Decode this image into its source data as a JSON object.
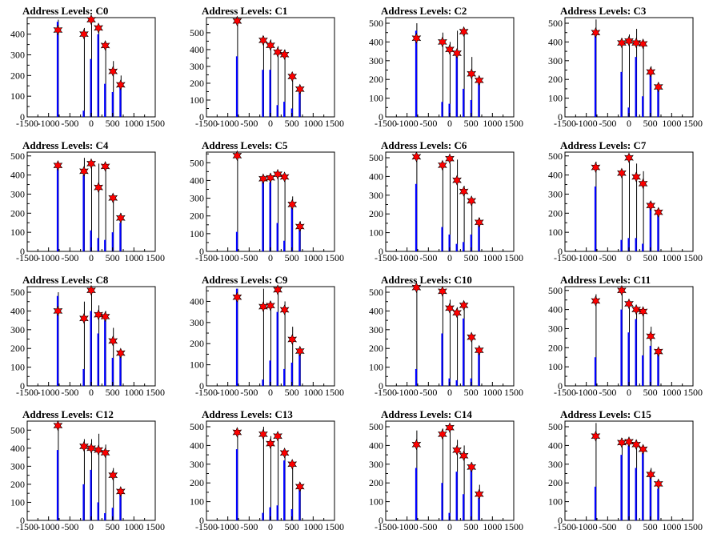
{
  "layout_note": "",
  "x_axis": {
    "xlim": [
      -1500,
      1500
    ],
    "ticks": [
      -1500,
      -1000,
      -500,
      0,
      500,
      1000,
      1500
    ]
  },
  "colors": {
    "histogram_black": "#000000",
    "histogram_blue": "#0000ff",
    "marker": "#ff0000"
  },
  "chart_data": [
    {
      "type": "bar",
      "title": "Address Levels: C0",
      "xlabel": "",
      "ylabel": "",
      "ylim": [
        0,
        480
      ],
      "yticks": [
        0,
        100,
        200,
        300,
        400
      ],
      "black": {
        "x": [
          -780,
          -170,
          0,
          170,
          330,
          510,
          690
        ],
        "values": [
          470,
          430,
          475,
          415,
          360,
          270,
          200
        ]
      },
      "blue": {
        "x": [
          -780,
          -170,
          0,
          170,
          330,
          510,
          690
        ],
        "values": [
          460,
          30,
          280,
          400,
          160,
          120,
          150
        ]
      },
      "markers": {
        "x": [
          -780,
          -170,
          0,
          170,
          330,
          510,
          690
        ],
        "values": [
          420,
          400,
          470,
          430,
          345,
          220,
          155
        ]
      }
    },
    {
      "type": "bar",
      "title": "Address Levels: C1",
      "xlabel": "",
      "ylabel": "",
      "ylim": [
        0,
        590
      ],
      "yticks": [
        0,
        100,
        200,
        300,
        400,
        500
      ],
      "black": {
        "x": [
          -780,
          -170,
          0,
          170,
          330,
          510,
          690
        ],
        "values": [
          590,
          480,
          460,
          420,
          400,
          260,
          180
        ]
      },
      "blue": {
        "x": [
          -780,
          -170,
          0,
          170,
          330,
          510,
          690
        ],
        "values": [
          360,
          280,
          280,
          70,
          90,
          50,
          150
        ]
      },
      "markers": {
        "x": [
          -780,
          -170,
          0,
          170,
          330,
          510,
          690
        ],
        "values": [
          570,
          455,
          425,
          385,
          370,
          240,
          165
        ]
      }
    },
    {
      "type": "bar",
      "title": "Address Levels: C2",
      "xlabel": "",
      "ylabel": "",
      "ylim": [
        0,
        530
      ],
      "yticks": [
        0,
        100,
        200,
        300,
        400,
        500
      ],
      "black": {
        "x": [
          -780,
          -170,
          0,
          170,
          330,
          510,
          690
        ],
        "values": [
          500,
          450,
          400,
          460,
          470,
          320,
          210
        ]
      },
      "blue": {
        "x": [
          -780,
          -170,
          0,
          170,
          330,
          510,
          690
        ],
        "values": [
          460,
          80,
          70,
          330,
          150,
          90,
          200
        ]
      },
      "markers": {
        "x": [
          -780,
          -170,
          0,
          170,
          330,
          510,
          690
        ],
        "values": [
          420,
          400,
          360,
          340,
          455,
          230,
          195
        ]
      }
    },
    {
      "type": "bar",
      "title": "Address Levels: C3",
      "xlabel": "",
      "ylabel": "",
      "ylim": [
        0,
        530
      ],
      "yticks": [
        0,
        100,
        200,
        300,
        400,
        500
      ],
      "black": {
        "x": [
          -780,
          -170,
          0,
          170,
          330,
          510,
          690
        ],
        "values": [
          520,
          420,
          440,
          470,
          380,
          270,
          180
        ]
      },
      "blue": {
        "x": [
          -780,
          -170,
          0,
          170,
          330,
          510,
          690
        ],
        "values": [
          460,
          240,
          50,
          320,
          110,
          230,
          170
        ]
      },
      "markers": {
        "x": [
          -780,
          -170,
          0,
          170,
          330,
          510,
          690
        ],
        "values": [
          450,
          395,
          405,
          395,
          390,
          240,
          160
        ]
      }
    },
    {
      "type": "bar",
      "title": "Address Levels: C4",
      "xlabel": "",
      "ylabel": "",
      "ylim": [
        0,
        520
      ],
      "yticks": [
        0,
        100,
        200,
        300,
        400,
        500
      ],
      "black": {
        "x": [
          -780,
          -170,
          0,
          170,
          330,
          510,
          690
        ],
        "values": [
          470,
          490,
          470,
          460,
          430,
          300,
          200
        ]
      },
      "blue": {
        "x": [
          -780,
          -170,
          0,
          170,
          330,
          510,
          690
        ],
        "values": [
          460,
          400,
          110,
          70,
          60,
          100,
          150
        ]
      },
      "markers": {
        "x": [
          -780,
          -170,
          0,
          170,
          330,
          510,
          690
        ],
        "values": [
          450,
          420,
          460,
          335,
          445,
          280,
          175
        ]
      }
    },
    {
      "type": "bar",
      "title": "Address Levels: C5",
      "xlabel": "",
      "ylabel": "",
      "ylim": [
        0,
        560
      ],
      "yticks": [
        0,
        100,
        200,
        300,
        400,
        500
      ],
      "black": {
        "x": [
          -780,
          -170,
          0,
          170,
          330,
          510,
          690
        ],
        "values": [
          550,
          420,
          440,
          450,
          430,
          310,
          170
        ]
      },
      "blue": {
        "x": [
          -780,
          -170,
          0,
          170,
          330,
          510,
          690
        ],
        "values": [
          110,
          410,
          390,
          160,
          60,
          280,
          150
        ]
      },
      "markers": {
        "x": [
          -780,
          -170,
          0,
          170,
          330,
          510,
          690
        ],
        "values": [
          540,
          410,
          415,
          435,
          420,
          265,
          140
        ]
      }
    },
    {
      "type": "bar",
      "title": "Address Levels: C6",
      "xlabel": "",
      "ylabel": "",
      "ylim": [
        0,
        530
      ],
      "yticks": [
        0,
        100,
        200,
        300,
        400,
        500
      ],
      "black": {
        "x": [
          -780,
          -170,
          0,
          170,
          330,
          510,
          690
        ],
        "values": [
          520,
          470,
          470,
          490,
          350,
          280,
          180
        ]
      },
      "blue": {
        "x": [
          -780,
          -170,
          0,
          170,
          330,
          510,
          690
        ],
        "values": [
          360,
          130,
          90,
          40,
          50,
          90,
          140
        ]
      },
      "markers": {
        "x": [
          -780,
          -170,
          0,
          170,
          330,
          510,
          690
        ],
        "values": [
          505,
          460,
          495,
          380,
          320,
          270,
          155
        ]
      }
    },
    {
      "type": "bar",
      "title": "Address Levels: C7",
      "xlabel": "",
      "ylabel": "",
      "ylim": [
        0,
        520
      ],
      "yticks": [
        0,
        100,
        200,
        300,
        400,
        500
      ],
      "black": {
        "x": [
          -780,
          -170,
          0,
          170,
          330,
          510,
          690
        ],
        "values": [
          470,
          430,
          500,
          460,
          420,
          260,
          210
        ]
      },
      "blue": {
        "x": [
          -780,
          -170,
          0,
          170,
          330,
          510,
          690
        ],
        "values": [
          340,
          60,
          70,
          70,
          40,
          260,
          200
        ]
      },
      "markers": {
        "x": [
          -780,
          -170,
          0,
          170,
          330,
          510,
          690
        ],
        "values": [
          440,
          410,
          490,
          390,
          355,
          240,
          205
        ]
      }
    },
    {
      "type": "bar",
      "title": "Address Levels: C8",
      "xlabel": "",
      "ylabel": "",
      "ylim": [
        0,
        530
      ],
      "yticks": [
        0,
        100,
        200,
        300,
        400,
        500
      ],
      "black": {
        "x": [
          -780,
          -170,
          0,
          170,
          330,
          510,
          690
        ],
        "values": [
          500,
          450,
          520,
          430,
          400,
          310,
          170
        ]
      },
      "blue": {
        "x": [
          -780,
          -170,
          0,
          170,
          330,
          510,
          690
        ],
        "values": [
          480,
          90,
          400,
          280,
          350,
          150,
          170
        ]
      },
      "markers": {
        "x": [
          -780,
          -170,
          0,
          170,
          330,
          510,
          690
        ],
        "values": [
          400,
          360,
          510,
          380,
          370,
          240,
          175
        ]
      }
    },
    {
      "type": "bar",
      "title": "Address Levels: C9",
      "xlabel": "",
      "ylabel": "",
      "ylim": [
        0,
        470
      ],
      "yticks": [
        0,
        100,
        200,
        300,
        400
      ],
      "black": {
        "x": [
          -780,
          -170,
          0,
          170,
          330,
          510,
          690
        ],
        "values": [
          460,
          460,
          400,
          460,
          400,
          280,
          180
        ]
      },
      "blue": {
        "x": [
          -780,
          -170,
          0,
          170,
          330,
          510,
          690
        ],
        "values": [
          460,
          30,
          120,
          350,
          80,
          110,
          150
        ]
      },
      "markers": {
        "x": [
          -780,
          -170,
          0,
          170,
          330,
          510,
          690
        ],
        "values": [
          420,
          375,
          380,
          455,
          360,
          220,
          165
        ]
      }
    },
    {
      "type": "bar",
      "title": "Address Levels: C10",
      "xlabel": "",
      "ylabel": "",
      "ylim": [
        0,
        530
      ],
      "yticks": [
        0,
        100,
        200,
        300,
        400,
        500
      ],
      "black": {
        "x": [
          -780,
          -170,
          0,
          170,
          330,
          510,
          690
        ],
        "values": [
          520,
          500,
          460,
          420,
          410,
          250,
          180
        ]
      },
      "blue": {
        "x": [
          -780,
          -170,
          0,
          170,
          330,
          510,
          690
        ],
        "values": [
          90,
          280,
          40,
          30,
          360,
          40,
          190
        ]
      },
      "markers": {
        "x": [
          -780,
          -170,
          0,
          170,
          330,
          510,
          690
        ],
        "values": [
          525,
          505,
          415,
          390,
          430,
          260,
          190
        ]
      }
    },
    {
      "type": "bar",
      "title": "Address Levels: C11",
      "xlabel": "",
      "ylabel": "",
      "ylim": [
        0,
        520
      ],
      "yticks": [
        0,
        100,
        200,
        300,
        400,
        500
      ],
      "black": {
        "x": [
          -780,
          -170,
          0,
          170,
          330,
          510,
          690
        ],
        "values": [
          480,
          500,
          440,
          410,
          390,
          310,
          190
        ]
      },
      "blue": {
        "x": [
          -780,
          -170,
          0,
          170,
          330,
          510,
          690
        ],
        "values": [
          150,
          400,
          280,
          350,
          160,
          210,
          170
        ]
      },
      "markers": {
        "x": [
          -780,
          -170,
          0,
          170,
          330,
          510,
          690
        ],
        "values": [
          445,
          500,
          430,
          400,
          390,
          260,
          180
        ]
      }
    },
    {
      "type": "bar",
      "title": "Address Levels: C12",
      "xlabel": "",
      "ylabel": "",
      "ylim": [
        0,
        550
      ],
      "yticks": [
        0,
        100,
        200,
        300,
        400,
        500
      ],
      "black": {
        "x": [
          -780,
          -170,
          0,
          170,
          330,
          510,
          690
        ],
        "values": [
          540,
          450,
          450,
          480,
          420,
          290,
          170
        ]
      },
      "blue": {
        "x": [
          -780,
          -170,
          0,
          170,
          330,
          510,
          690
        ],
        "values": [
          390,
          200,
          280,
          100,
          40,
          70,
          170
        ]
      },
      "markers": {
        "x": [
          -780,
          -170,
          0,
          170,
          330,
          510,
          690
        ],
        "values": [
          525,
          410,
          400,
          390,
          375,
          250,
          160
        ]
      }
    },
    {
      "type": "bar",
      "title": "Address Levels: C13",
      "xlabel": "",
      "ylabel": "",
      "ylim": [
        0,
        530
      ],
      "yticks": [
        0,
        100,
        200,
        300,
        400,
        500
      ],
      "black": {
        "x": [
          -780,
          -170,
          0,
          170,
          330,
          510,
          690
        ],
        "values": [
          490,
          500,
          450,
          460,
          370,
          300,
          200
        ]
      },
      "blue": {
        "x": [
          -780,
          -170,
          0,
          170,
          330,
          510,
          690
        ],
        "values": [
          380,
          40,
          70,
          80,
          320,
          60,
          180
        ]
      },
      "markers": {
        "x": [
          -780,
          -170,
          0,
          170,
          330,
          510,
          690
        ],
        "values": [
          470,
          460,
          410,
          450,
          360,
          300,
          180
        ]
      }
    },
    {
      "type": "bar",
      "title": "Address Levels: C14",
      "xlabel": "",
      "ylabel": "",
      "ylim": [
        0,
        530
      ],
      "yticks": [
        0,
        100,
        200,
        300,
        400,
        500
      ],
      "black": {
        "x": [
          -780,
          -170,
          0,
          170,
          330,
          510,
          690
        ],
        "values": [
          480,
          490,
          500,
          430,
          400,
          310,
          190
        ]
      },
      "blue": {
        "x": [
          -780,
          -170,
          0,
          170,
          330,
          510,
          690
        ],
        "values": [
          280,
          200,
          40,
          260,
          140,
          270,
          120
        ]
      },
      "markers": {
        "x": [
          -780,
          -170,
          0,
          170,
          330,
          510,
          690
        ],
        "values": [
          405,
          460,
          495,
          375,
          345,
          285,
          140
        ]
      }
    },
    {
      "type": "bar",
      "title": "Address Levels: C15",
      "xlabel": "",
      "ylabel": "",
      "ylim": [
        0,
        530
      ],
      "yticks": [
        0,
        100,
        200,
        300,
        400,
        500
      ],
      "black": {
        "x": [
          -780,
          -170,
          0,
          170,
          330,
          510,
          690
        ],
        "values": [
          520,
          440,
          430,
          430,
          400,
          280,
          190
        ]
      },
      "blue": {
        "x": [
          -780,
          -170,
          0,
          170,
          330,
          510,
          690
        ],
        "values": [
          180,
          350,
          400,
          280,
          360,
          240,
          170
        ]
      },
      "markers": {
        "x": [
          -780,
          -170,
          0,
          170,
          330,
          510,
          690
        ],
        "values": [
          450,
          415,
          420,
          405,
          380,
          245,
          195
        ]
      }
    }
  ]
}
